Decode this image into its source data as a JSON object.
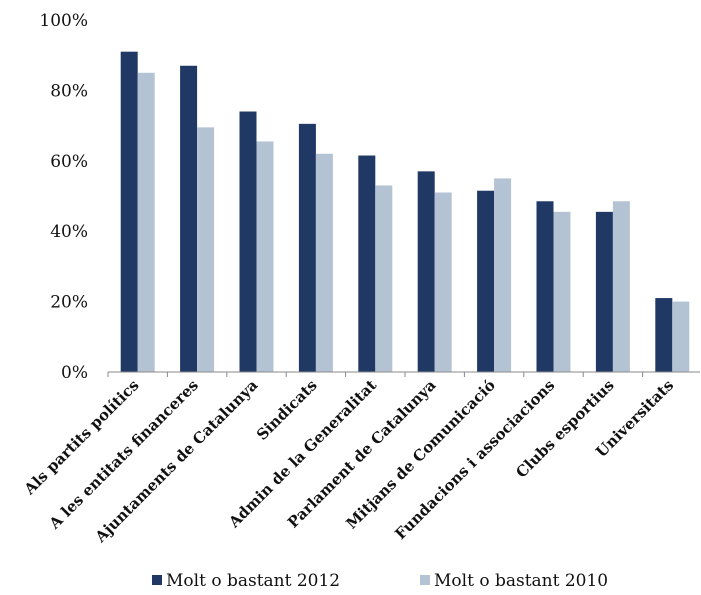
{
  "chart_data": {
    "type": "bar",
    "title": "",
    "xlabel": "",
    "ylabel": "",
    "ylim": [
      0,
      100
    ],
    "yticks": [
      0,
      20,
      40,
      60,
      80,
      100
    ],
    "ytick_labels": [
      "0%",
      "20%",
      "40%",
      "60%",
      "80%",
      "100%"
    ],
    "grid": false,
    "legend": "bottom",
    "categories": [
      "Als partits polítics",
      "A les entitats financeres",
      "Ajuntaments de Catalunya",
      "Sindicats",
      "Admin de la Generalitat",
      "Parlament de Catalunya",
      "Mitjans de Comunicació",
      "Fundacions i associacions",
      "Clubs esportius",
      "Universitats"
    ],
    "series": [
      {
        "name": "Molt o bastant 2012",
        "color": "#1f3864",
        "values": [
          91,
          87,
          74,
          70.5,
          61.5,
          57,
          51.5,
          48.5,
          45.5,
          21
        ]
      },
      {
        "name": "Molt o bastant 2010",
        "color": "#b4c3d4",
        "values": [
          85,
          69.5,
          65.5,
          62,
          53,
          51,
          55,
          45.5,
          48.5,
          20
        ]
      }
    ]
  }
}
